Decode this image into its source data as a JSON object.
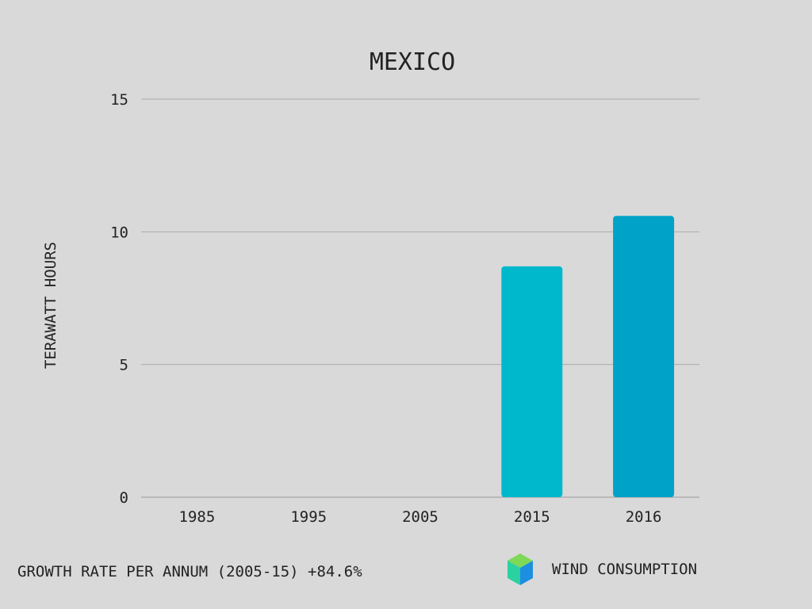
{
  "chart_data": {
    "type": "bar",
    "title": "MEXICO",
    "ylabel": "TERAWATT HOURS",
    "xlabel": "",
    "categories": [
      "1985",
      "1995",
      "2005",
      "2015",
      "2016"
    ],
    "values": [
      0,
      0,
      0,
      8.7,
      10.6
    ],
    "bar_colors": [
      "#00b8cc",
      "#00b8cc",
      "#00b8cc",
      "#00b8cc",
      "#00a2c8"
    ],
    "ylim": [
      0,
      15
    ],
    "yticks": [
      0,
      5,
      10,
      15
    ],
    "grid": true
  },
  "footer": {
    "growth_text": "GROWTH RATE PER ANNUM (2005-15) +84.6%",
    "legend_label": "WIND CONSUMPTION",
    "legend_icon": "cube-icon"
  }
}
